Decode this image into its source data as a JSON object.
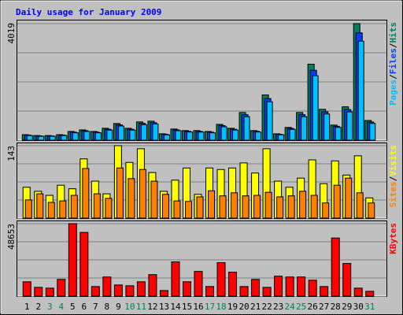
{
  "title": "Daily usage for January 2009",
  "chart_data": [
    {
      "type": "bar",
      "ylim": [
        0,
        4019
      ],
      "yticks": [
        4019
      ],
      "legend_separator": "/",
      "series": [
        {
          "name": "Hits",
          "color": "#00805c",
          "values": [
            190,
            160,
            160,
            190,
            300,
            355,
            300,
            410,
            575,
            410,
            630,
            655,
            220,
            385,
            330,
            330,
            300,
            545,
            410,
            955,
            330,
            1560,
            220,
            440,
            955,
            2620,
            1065,
            520,
            1150,
            4019,
            680
          ]
        },
        {
          "name": "Files",
          "color": "#0040ff",
          "values": [
            175,
            148,
            148,
            175,
            276,
            327,
            276,
            377,
            529,
            377,
            580,
            603,
            202,
            354,
            304,
            304,
            276,
            501,
            377,
            879,
            304,
            1435,
            202,
            405,
            879,
            2410,
            980,
            478,
            1058,
            3700,
            626
          ]
        },
        {
          "name": "Pages",
          "color": "#00c0ff",
          "values": [
            160,
            135,
            135,
            160,
            255,
            300,
            255,
            348,
            488,
            348,
            535,
            556,
            187,
            327,
            280,
            280,
            255,
            463,
            348,
            811,
            280,
            1325,
            187,
            374,
            811,
            2225,
            905,
            442,
            977,
            3415,
            578
          ]
        }
      ]
    },
    {
      "type": "bar",
      "ylim": [
        0,
        143
      ],
      "yticks": [
        143
      ],
      "legend_separator": "/",
      "series": [
        {
          "name": "Visits",
          "color": "#ffff00",
          "values": [
            61,
            53,
            45,
            65,
            58,
            117,
            73,
            48,
            143,
            110,
            137,
            90,
            53,
            75,
            99,
            47,
            99,
            96,
            99,
            109,
            89,
            137,
            73,
            61,
            79,
            115,
            68,
            113,
            85,
            123,
            40
          ]
        },
        {
          "name": "Sites",
          "color": "#ff8000",
          "values": [
            36,
            48,
            31,
            34,
            45,
            98,
            48,
            39,
            99,
            78,
            96,
            73,
            47,
            34,
            33,
            42,
            54,
            44,
            50,
            44,
            45,
            51,
            42,
            44,
            53,
            45,
            30,
            65,
            79,
            50,
            30
          ]
        }
      ]
    },
    {
      "type": "bar",
      "ylim": [
        0,
        48653
      ],
      "yticks": [
        48653
      ],
      "categories": [
        "1",
        "2",
        "3",
        "4",
        "5",
        "6",
        "7",
        "8",
        "9",
        "10",
        "11",
        "12",
        "13",
        "14",
        "15",
        "16",
        "17",
        "18",
        "19",
        "20",
        "21",
        "22",
        "23",
        "24",
        "25",
        "26",
        "27",
        "28",
        "29",
        "30",
        "31"
      ],
      "category_label_colors": [
        "#000000",
        "#000000",
        "#00805c",
        "#00805c",
        "#000000",
        "#000000",
        "#000000",
        "#000000",
        "#000000",
        "#00805c",
        "#00805c",
        "#000000",
        "#000000",
        "#000000",
        "#000000",
        "#000000",
        "#00805c",
        "#00805c",
        "#000000",
        "#000000",
        "#000000",
        "#000000",
        "#000000",
        "#00805c",
        "#00805c",
        "#000000",
        "#000000",
        "#000000",
        "#000000",
        "#000000",
        "#00805c"
      ],
      "series": [
        {
          "name": "KBytes",
          "color": "#ff0000",
          "values": [
            9620,
            5880,
            5350,
            11230,
            48653,
            42770,
            6420,
            12830,
            7480,
            6950,
            9620,
            14430,
            3740,
            22990,
            9620,
            16570,
            6420,
            22450,
            16040,
            6420,
            11230,
            5880,
            13370,
            12830,
            12830,
            10690,
            6420,
            39030,
            21920,
            5350,
            3210
          ]
        }
      ]
    }
  ]
}
